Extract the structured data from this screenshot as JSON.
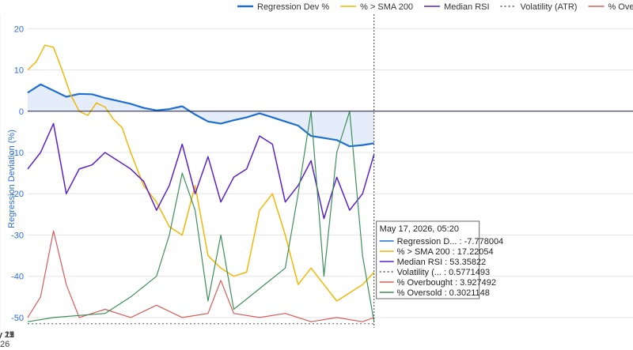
{
  "chart_data": {
    "type": "line",
    "ylabel": "Regression Deviation (%)",
    "ylim": [
      -52.5,
      23.5
    ],
    "yticks": [
      20,
      10,
      0,
      -10,
      -20,
      -30,
      -40,
      -50
    ],
    "xlim": [
      "2026-05-10 12:00",
      "2026-05-22 06:00"
    ],
    "xticks": [
      {
        "label": "May 11",
        "sublabel": "2026",
        "x": "2026-05-11"
      },
      {
        "label": "May 13",
        "x": "2026-05-13"
      },
      {
        "label": "May 15",
        "x": "2026-05-15"
      },
      {
        "label": "May 17",
        "x": "2026-05-17"
      },
      {
        "label": "May 19",
        "x": "2026-05-19"
      },
      {
        "label": "May 21",
        "x": "2026-05-21"
      }
    ],
    "grid": true,
    "legend_position": "top",
    "hover_x": "2026-05-17 05:20",
    "series": [
      {
        "name": "Regression Dev %",
        "color": "#1f6fd1",
        "dash": "solid",
        "width": 2.2,
        "fill": true,
        "x": [
          "2026-05-10 12:00",
          "2026-05-10 18:00",
          "2026-05-11 00:00",
          "2026-05-11 06:00",
          "2026-05-11 12:00",
          "2026-05-11 18:00",
          "2026-05-12 00:00",
          "2026-05-12 06:00",
          "2026-05-12 12:00",
          "2026-05-12 18:00",
          "2026-05-13 00:00",
          "2026-05-13 06:00",
          "2026-05-13 12:00",
          "2026-05-13 18:00",
          "2026-05-14 00:00",
          "2026-05-14 06:00",
          "2026-05-14 12:00",
          "2026-05-14 18:00",
          "2026-05-15 00:00",
          "2026-05-15 06:00",
          "2026-05-15 12:00",
          "2026-05-15 18:00",
          "2026-05-16 00:00",
          "2026-05-16 06:00",
          "2026-05-16 12:00",
          "2026-05-16 18:00",
          "2026-05-17 00:00",
          "2026-05-17 05:20"
        ],
        "values": [
          4.5,
          6.5,
          5,
          3.5,
          4.2,
          4.1,
          3.2,
          2.5,
          1.8,
          0.8,
          0.2,
          0.5,
          1.2,
          -0.8,
          -2.5,
          -3,
          -2.2,
          -1.5,
          -0.5,
          -1.5,
          -2.5,
          -3.5,
          -6,
          -6.5,
          -7,
          -8.5,
          -8.2,
          -7.78
        ]
      },
      {
        "name": "% > SMA 200",
        "color": "#f2b705",
        "dash": "solid",
        "width": 1.5,
        "fill": false,
        "x": [
          "2026-05-10 12:00",
          "2026-05-10 16:00",
          "2026-05-10 20:00",
          "2026-05-11 00:00",
          "2026-05-11 04:00",
          "2026-05-11 08:00",
          "2026-05-11 12:00",
          "2026-05-11 16:00",
          "2026-05-11 20:00",
          "2026-05-12 00:00",
          "2026-05-12 04:00",
          "2026-05-12 08:00",
          "2026-05-12 12:00",
          "2026-05-12 18:00",
          "2026-05-13 00:00",
          "2026-05-13 06:00",
          "2026-05-13 12:00",
          "2026-05-13 18:00",
          "2026-05-14 00:00",
          "2026-05-14 06:00",
          "2026-05-14 12:00",
          "2026-05-14 18:00",
          "2026-05-15 00:00",
          "2026-05-15 06:00",
          "2026-05-15 12:00",
          "2026-05-15 18:00",
          "2026-05-16 00:00",
          "2026-05-16 06:00",
          "2026-05-16 12:00",
          "2026-05-16 18:00",
          "2026-05-17 00:00",
          "2026-05-17 05:20"
        ],
        "values": [
          10,
          12,
          16,
          15.5,
          10,
          4,
          0,
          -1,
          2,
          1,
          -2,
          -4,
          -10,
          -18,
          -22,
          -28,
          -30,
          -18,
          -35,
          -38,
          -40,
          -39,
          -24,
          -20,
          -30,
          -42,
          -38,
          -42,
          -46,
          -44,
          -42,
          -39
        ]
      },
      {
        "name": "Median RSI",
        "color": "#5b21c7",
        "dash": "solid",
        "width": 1.5,
        "fill": false,
        "x": [
          "2026-05-10 12:00",
          "2026-05-10 18:00",
          "2026-05-11 00:00",
          "2026-05-11 06:00",
          "2026-05-11 12:00",
          "2026-05-11 18:00",
          "2026-05-12 00:00",
          "2026-05-12 06:00",
          "2026-05-12 12:00",
          "2026-05-12 18:00",
          "2026-05-13 00:00",
          "2026-05-13 06:00",
          "2026-05-13 12:00",
          "2026-05-13 18:00",
          "2026-05-14 00:00",
          "2026-05-14 06:00",
          "2026-05-14 12:00",
          "2026-05-14 18:00",
          "2026-05-15 00:00",
          "2026-05-15 06:00",
          "2026-05-15 12:00",
          "2026-05-15 18:00",
          "2026-05-16 00:00",
          "2026-05-16 06:00",
          "2026-05-16 12:00",
          "2026-05-16 18:00",
          "2026-05-17 00:00",
          "2026-05-17 05:20"
        ],
        "values": [
          -14,
          -10,
          -3,
          -20,
          -14,
          -13,
          -10,
          -12,
          -14,
          -17,
          -24,
          -18,
          -8,
          -20,
          -11,
          -22,
          -16,
          -14,
          -6,
          -8,
          -22,
          -18,
          -12,
          -26,
          -16,
          -24,
          -20,
          -10.5
        ]
      },
      {
        "name": "Volatility (ATR)",
        "color": "#555555",
        "dash": "dotted",
        "width": 1,
        "fill": false,
        "x": [
          "2026-05-10 12:00",
          "2026-05-17 05:20"
        ],
        "values": [
          -51.5,
          -51.5
        ]
      },
      {
        "name": "% Overbought",
        "color": "#d65c5c",
        "dash": "solid",
        "width": 1.2,
        "fill": false,
        "x": [
          "2026-05-10 12:00",
          "2026-05-10 18:00",
          "2026-05-11 00:00",
          "2026-05-11 06:00",
          "2026-05-11 12:00",
          "2026-05-12 00:00",
          "2026-05-12 12:00",
          "2026-05-13 00:00",
          "2026-05-13 12:00",
          "2026-05-14 00:00",
          "2026-05-14 06:00",
          "2026-05-14 12:00",
          "2026-05-15 00:00",
          "2026-05-15 12:00",
          "2026-05-16 00:00",
          "2026-05-16 12:00",
          "2026-05-17 00:00",
          "2026-05-17 05:20"
        ],
        "values": [
          -50,
          -45,
          -29,
          -42,
          -50,
          -48,
          -50,
          -47,
          -50,
          -49,
          -41,
          -49,
          -50,
          -49,
          -51,
          -50,
          -51,
          -50
        ]
      },
      {
        "name": "% Oversold",
        "color": "#3c8f5a",
        "dash": "solid",
        "width": 1.2,
        "fill": false,
        "x": [
          "2026-05-10 12:00",
          "2026-05-11 00:00",
          "2026-05-12 00:00",
          "2026-05-12 12:00",
          "2026-05-13 00:00",
          "2026-05-13 06:00",
          "2026-05-13 12:00",
          "2026-05-13 18:00",
          "2026-05-14 00:00",
          "2026-05-14 06:00",
          "2026-05-14 12:00",
          "2026-05-15 00:00",
          "2026-05-15 12:00",
          "2026-05-15 18:00",
          "2026-05-16 00:00",
          "2026-05-16 06:00",
          "2026-05-16 12:00",
          "2026-05-16 18:00",
          "2026-05-17 00:00",
          "2026-05-17 05:20"
        ],
        "values": [
          -51,
          -50,
          -49,
          -45,
          -40,
          -30,
          -15,
          -24,
          -46,
          -30,
          -48,
          -43,
          -38,
          -20,
          0,
          -40,
          -10,
          0,
          -35,
          -51
        ]
      }
    ],
    "tooltip": {
      "title": "May 17, 2026, 05:20",
      "rows": [
        {
          "label": "Regression D... : -7.778004"
        },
        {
          "label": "% > SMA 200 : 17.22054"
        },
        {
          "label": "Median RSI : 53.35822"
        },
        {
          "label": "Volatility (... : 0.5771493"
        },
        {
          "label": "% Overbought : 3.927492"
        },
        {
          "label": "% Oversold : 0.3021148"
        }
      ]
    }
  }
}
